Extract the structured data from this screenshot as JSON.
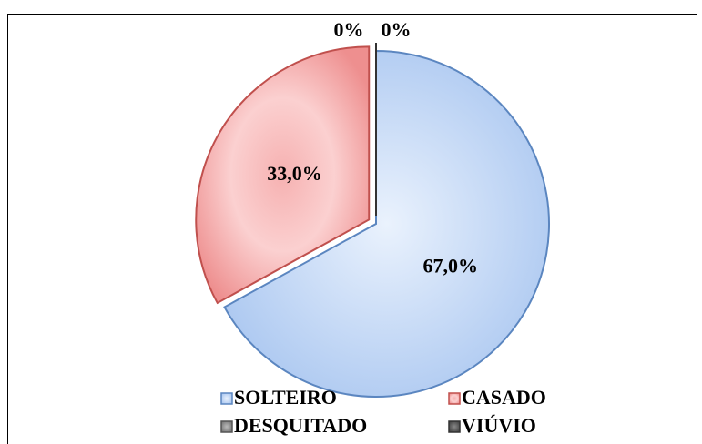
{
  "chart_data": {
    "type": "pie",
    "categories": [
      "SOLTEIRO",
      "CASADO",
      "DESQUITADO",
      "VIÚVIO"
    ],
    "values": [
      67.0,
      33.0,
      0,
      0
    ],
    "value_labels": [
      "67,0%",
      "33,0%",
      "0%",
      "0%"
    ],
    "colors": [
      "#c6dbf7",
      "#f7aaaa",
      "#8c8c8c",
      "#595959"
    ],
    "legend": "bottom"
  }
}
